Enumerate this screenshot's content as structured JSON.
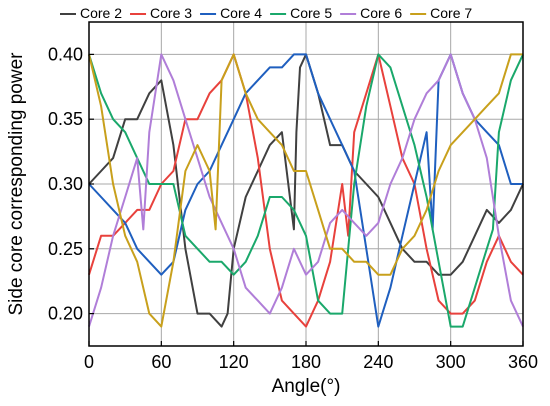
{
  "chart_data": {
    "type": "line",
    "title": "",
    "xlabel": "Angle(°)",
    "ylabel": "Side core corresponding power",
    "xlim": [
      0,
      360
    ],
    "ylim": [
      0.175,
      0.425
    ],
    "xticks": [
      0,
      60,
      120,
      180,
      240,
      300,
      360
    ],
    "yticks": [
      0.2,
      0.25,
      0.3,
      0.35,
      0.4
    ],
    "xtick_labels": [
      "0",
      "60",
      "120",
      "180",
      "240",
      "300",
      "360"
    ],
    "ytick_labels": [
      "0.20",
      "0.25",
      "0.30",
      "0.35",
      "0.40"
    ],
    "grid": true,
    "legend_position": "top",
    "series": [
      {
        "name": "Core 2",
        "color": "#404040",
        "x": [
          0,
          10,
          20,
          30,
          40,
          50,
          60,
          70,
          80,
          90,
          100,
          110,
          115,
          120,
          130,
          140,
          150,
          160,
          170,
          172,
          175,
          180,
          190,
          200,
          210,
          220,
          230,
          240,
          250,
          260,
          270,
          280,
          290,
          300,
          310,
          320,
          330,
          340,
          350,
          360
        ],
        "y": [
          0.3,
          0.31,
          0.32,
          0.35,
          0.35,
          0.37,
          0.38,
          0.33,
          0.25,
          0.2,
          0.2,
          0.19,
          0.2,
          0.25,
          0.29,
          0.31,
          0.33,
          0.34,
          0.265,
          0.34,
          0.39,
          0.4,
          0.37,
          0.33,
          0.33,
          0.31,
          0.3,
          0.29,
          0.27,
          0.25,
          0.24,
          0.24,
          0.23,
          0.23,
          0.24,
          0.26,
          0.28,
          0.27,
          0.28,
          0.3
        ]
      },
      {
        "name": "Core 3",
        "color": "#e8413c",
        "x": [
          0,
          10,
          20,
          30,
          40,
          50,
          60,
          70,
          80,
          90,
          100,
          110,
          120,
          130,
          140,
          150,
          160,
          170,
          180,
          190,
          200,
          210,
          215,
          220,
          230,
          240,
          250,
          260,
          270,
          280,
          290,
          300,
          310,
          320,
          330,
          340,
          350,
          360
        ],
        "y": [
          0.23,
          0.26,
          0.26,
          0.27,
          0.28,
          0.28,
          0.3,
          0.31,
          0.35,
          0.35,
          0.37,
          0.38,
          0.4,
          0.37,
          0.32,
          0.25,
          0.21,
          0.2,
          0.19,
          0.21,
          0.24,
          0.3,
          0.26,
          0.34,
          0.37,
          0.4,
          0.36,
          0.32,
          0.3,
          0.25,
          0.21,
          0.2,
          0.2,
          0.21,
          0.24,
          0.26,
          0.24,
          0.23
        ]
      },
      {
        "name": "Core 4",
        "color": "#1f5fbf",
        "x": [
          0,
          10,
          20,
          30,
          40,
          50,
          60,
          70,
          80,
          90,
          100,
          110,
          120,
          130,
          140,
          150,
          160,
          170,
          180,
          190,
          200,
          210,
          220,
          230,
          240,
          250,
          260,
          270,
          280,
          285,
          290,
          300,
          310,
          320,
          330,
          340,
          350,
          360
        ],
        "y": [
          0.3,
          0.29,
          0.28,
          0.27,
          0.25,
          0.24,
          0.23,
          0.24,
          0.28,
          0.3,
          0.31,
          0.33,
          0.35,
          0.37,
          0.38,
          0.39,
          0.39,
          0.4,
          0.4,
          0.37,
          0.35,
          0.33,
          0.31,
          0.25,
          0.19,
          0.22,
          0.26,
          0.3,
          0.34,
          0.265,
          0.38,
          0.4,
          0.37,
          0.35,
          0.34,
          0.33,
          0.3,
          0.3
        ]
      },
      {
        "name": "Core 5",
        "color": "#1aa86b",
        "x": [
          0,
          10,
          20,
          30,
          40,
          50,
          60,
          70,
          80,
          90,
          100,
          110,
          120,
          130,
          140,
          150,
          160,
          170,
          180,
          190,
          200,
          210,
          220,
          230,
          240,
          250,
          260,
          270,
          280,
          290,
          300,
          310,
          320,
          330,
          335,
          340,
          350,
          360
        ],
        "y": [
          0.4,
          0.37,
          0.35,
          0.34,
          0.32,
          0.3,
          0.3,
          0.3,
          0.26,
          0.25,
          0.24,
          0.24,
          0.23,
          0.24,
          0.26,
          0.29,
          0.29,
          0.28,
          0.26,
          0.21,
          0.2,
          0.2,
          0.3,
          0.36,
          0.4,
          0.39,
          0.36,
          0.33,
          0.29,
          0.24,
          0.19,
          0.19,
          0.22,
          0.25,
          0.265,
          0.34,
          0.38,
          0.4
        ]
      },
      {
        "name": "Core 6",
        "color": "#b07ed8",
        "x": [
          0,
          10,
          20,
          30,
          40,
          45,
          50,
          60,
          70,
          80,
          90,
          100,
          110,
          120,
          130,
          140,
          150,
          160,
          170,
          180,
          190,
          200,
          210,
          220,
          230,
          240,
          250,
          260,
          270,
          280,
          290,
          300,
          310,
          320,
          330,
          340,
          350,
          360
        ],
        "y": [
          0.19,
          0.22,
          0.26,
          0.29,
          0.32,
          0.265,
          0.34,
          0.4,
          0.38,
          0.35,
          0.32,
          0.29,
          0.27,
          0.25,
          0.22,
          0.21,
          0.2,
          0.22,
          0.25,
          0.23,
          0.24,
          0.27,
          0.28,
          0.27,
          0.26,
          0.27,
          0.3,
          0.32,
          0.35,
          0.37,
          0.38,
          0.4,
          0.37,
          0.35,
          0.32,
          0.26,
          0.21,
          0.19
        ]
      },
      {
        "name": "Core 7",
        "color": "#c8a01c",
        "x": [
          0,
          10,
          20,
          30,
          40,
          50,
          60,
          70,
          80,
          90,
          100,
          105,
          110,
          120,
          130,
          140,
          150,
          160,
          170,
          180,
          190,
          200,
          210,
          220,
          230,
          240,
          250,
          260,
          270,
          280,
          290,
          300,
          310,
          320,
          330,
          340,
          350,
          360
        ],
        "y": [
          0.4,
          0.36,
          0.3,
          0.26,
          0.24,
          0.2,
          0.19,
          0.24,
          0.31,
          0.33,
          0.31,
          0.265,
          0.38,
          0.4,
          0.37,
          0.35,
          0.34,
          0.33,
          0.31,
          0.31,
          0.28,
          0.25,
          0.25,
          0.24,
          0.24,
          0.23,
          0.23,
          0.25,
          0.26,
          0.28,
          0.31,
          0.33,
          0.34,
          0.35,
          0.36,
          0.37,
          0.4,
          0.4
        ]
      }
    ]
  }
}
